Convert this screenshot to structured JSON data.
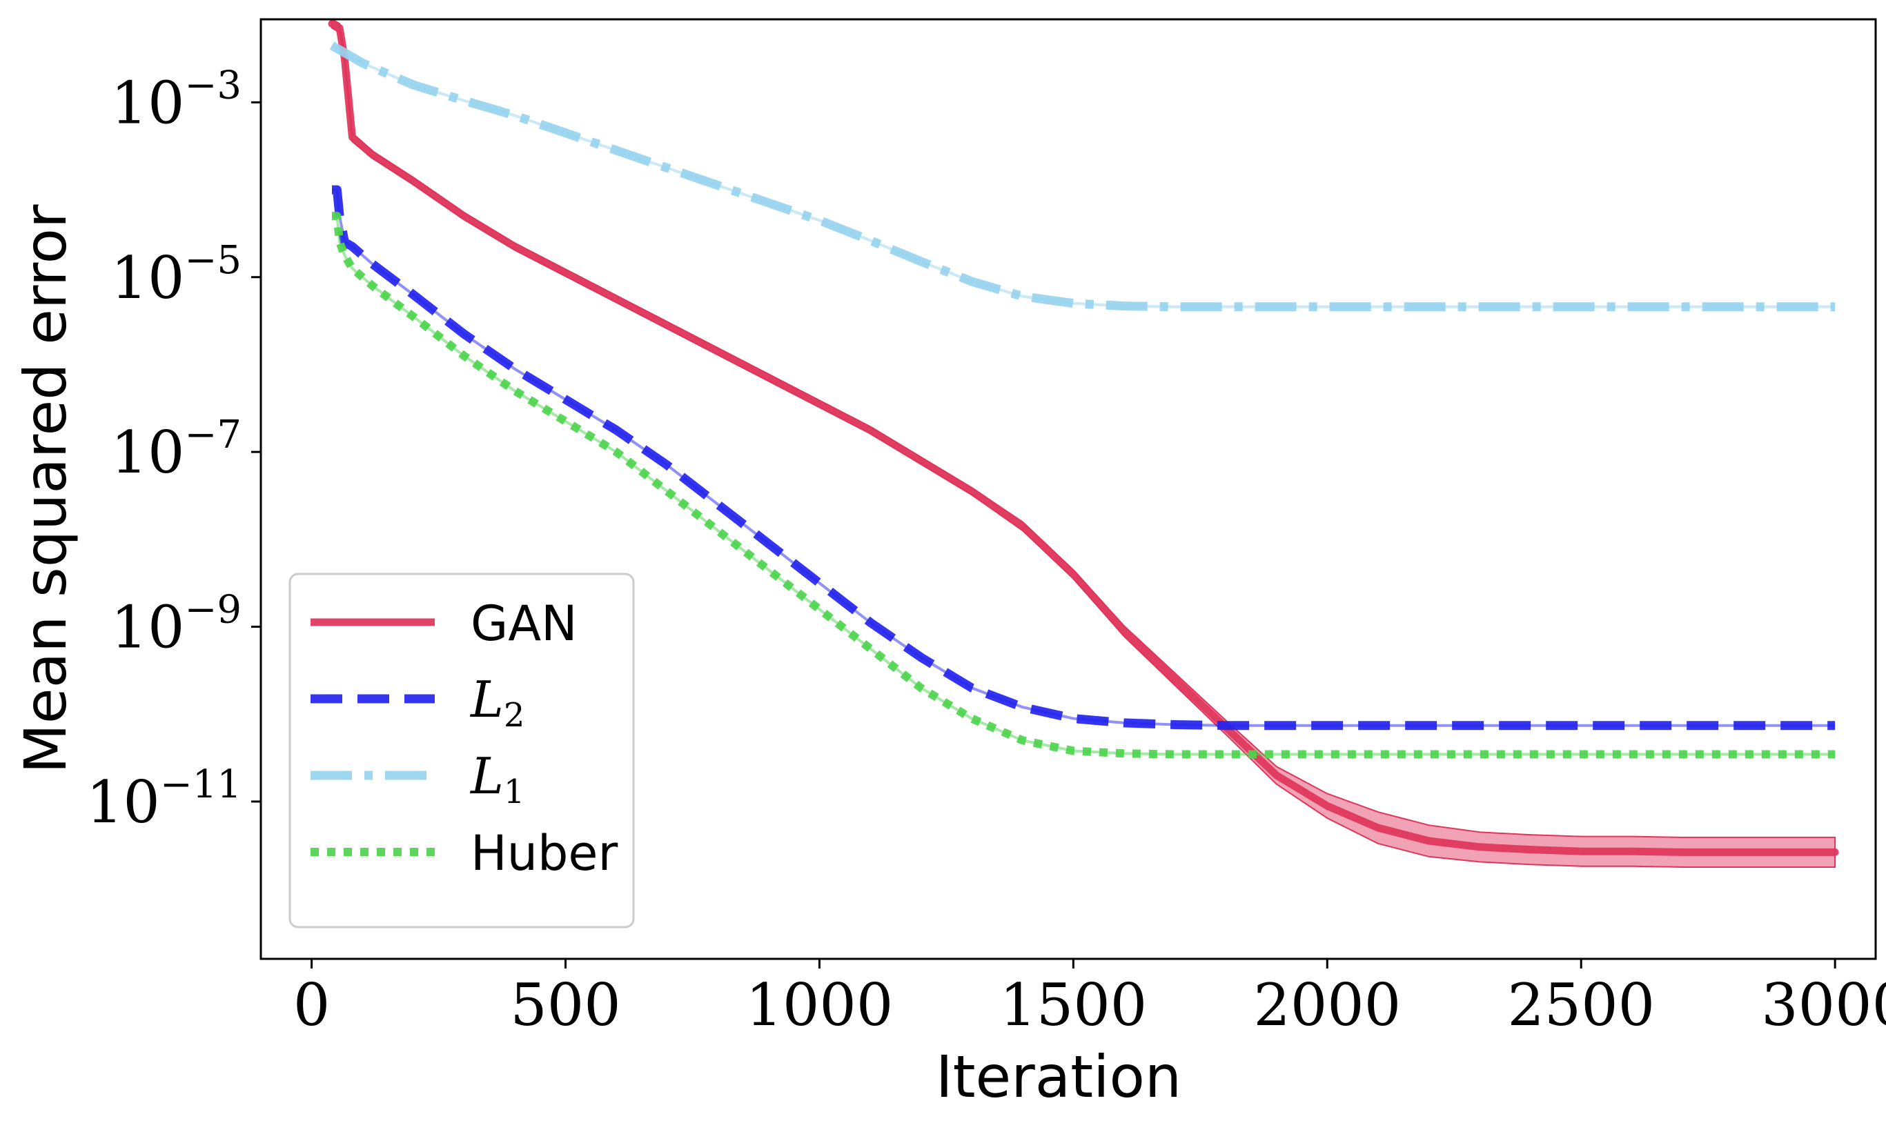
{
  "chart_data": {
    "type": "line",
    "title": "",
    "xlabel": "Iteration",
    "ylabel": "Mean squared error",
    "yscale": "log",
    "xlim": [
      -100,
      3080
    ],
    "ylim_log10": [
      -12.8,
      -2.05
    ],
    "x_ticks": [
      0,
      500,
      1000,
      1500,
      2000,
      2500,
      3000
    ],
    "x_tick_labels": [
      "0",
      "500",
      "1000",
      "1500",
      "2000",
      "2500",
      "3000"
    ],
    "y_ticks_log10": [
      -3,
      -5,
      -7,
      -9,
      -11
    ],
    "y_tick_labels": [
      {
        "base": "10",
        "exp": "−3"
      },
      {
        "base": "10",
        "exp": "−5"
      },
      {
        "base": "10",
        "exp": "−7"
      },
      {
        "base": "10",
        "exp": "−9"
      },
      {
        "base": "10",
        "exp": "−11"
      }
    ],
    "legend_position": "lower-left",
    "series": [
      {
        "name": "GAN",
        "label_base": "GAN",
        "label_sub": "",
        "math": false,
        "color": "#e0345a",
        "style": "solid",
        "band": true,
        "x": [
          40,
          55,
          65,
          80,
          120,
          200,
          300,
          400,
          500,
          600,
          700,
          800,
          900,
          1000,
          1100,
          1200,
          1300,
          1400,
          1500,
          1600,
          1700,
          1800,
          1900,
          2000,
          2100,
          2200,
          2300,
          2400,
          2500,
          2600,
          2700,
          2800,
          2900,
          3000
        ],
        "log10": [
          -2.1,
          -2.15,
          -2.5,
          -3.4,
          -3.6,
          -3.9,
          -4.3,
          -4.65,
          -4.95,
          -5.25,
          -5.55,
          -5.85,
          -6.15,
          -6.45,
          -6.75,
          -7.1,
          -7.45,
          -7.85,
          -8.4,
          -9.05,
          -9.6,
          -10.15,
          -10.7,
          -11.05,
          -11.3,
          -11.45,
          -11.52,
          -11.55,
          -11.57,
          -11.57,
          -11.58,
          -11.58,
          -11.58,
          -11.58
        ],
        "band_log10": [
          0.05,
          0.05,
          0.05,
          0.05,
          0.04,
          0.04,
          0.04,
          0.04,
          0.04,
          0.04,
          0.04,
          0.04,
          0.04,
          0.04,
          0.04,
          0.04,
          0.04,
          0.05,
          0.05,
          0.06,
          0.07,
          0.08,
          0.1,
          0.14,
          0.18,
          0.18,
          0.17,
          0.17,
          0.17,
          0.17,
          0.17,
          0.17,
          0.17,
          0.17
        ]
      },
      {
        "name": "L2",
        "label_base": "L",
        "label_sub": "2",
        "math": true,
        "color": "#2424ee",
        "style": "dashed",
        "band": false,
        "x": [
          40,
          50,
          55,
          65,
          80,
          120,
          200,
          300,
          400,
          500,
          600,
          700,
          800,
          900,
          1000,
          1100,
          1200,
          1300,
          1400,
          1500,
          1600,
          1700,
          1800,
          1900,
          2000,
          2100,
          2200,
          2300,
          2400,
          2500,
          2600,
          2700,
          2800,
          2900,
          3000
        ],
        "log10": [
          -4.0,
          -4.0,
          -4.3,
          -4.6,
          -4.65,
          -4.85,
          -5.2,
          -5.65,
          -6.05,
          -6.4,
          -6.75,
          -7.15,
          -7.6,
          -8.05,
          -8.5,
          -8.95,
          -9.35,
          -9.7,
          -9.92,
          -10.05,
          -10.1,
          -10.12,
          -10.13,
          -10.13,
          -10.13,
          -10.13,
          -10.13,
          -10.13,
          -10.13,
          -10.13,
          -10.13,
          -10.13,
          -10.13,
          -10.13,
          -10.13
        ]
      },
      {
        "name": "L1",
        "label_base": "L",
        "label_sub": "1",
        "math": true,
        "color": "#97d2ef",
        "style": "dashdot",
        "band": false,
        "x": [
          40,
          100,
          200,
          300,
          400,
          500,
          600,
          700,
          800,
          900,
          1000,
          1100,
          1200,
          1300,
          1400,
          1500,
          1600,
          1700,
          1800,
          1900,
          2000,
          2100,
          2200,
          2300,
          2400,
          2500,
          2600,
          2700,
          2800,
          2900,
          3000
        ],
        "log10": [
          -2.35,
          -2.55,
          -2.8,
          -2.98,
          -3.15,
          -3.35,
          -3.55,
          -3.75,
          -3.95,
          -4.15,
          -4.35,
          -4.58,
          -4.82,
          -5.05,
          -5.22,
          -5.3,
          -5.33,
          -5.34,
          -5.34,
          -5.34,
          -5.34,
          -5.34,
          -5.34,
          -5.34,
          -5.34,
          -5.34,
          -5.34,
          -5.34,
          -5.34,
          -5.34,
          -5.34
        ]
      },
      {
        "name": "Huber",
        "label_base": "Huber",
        "label_sub": "",
        "math": false,
        "color": "#4dd44d",
        "style": "dotted",
        "band": false,
        "x": [
          40,
          50,
          55,
          65,
          80,
          120,
          200,
          300,
          400,
          500,
          600,
          700,
          800,
          900,
          1000,
          1100,
          1200,
          1300,
          1400,
          1500,
          1600,
          1700,
          1800,
          1900,
          2000,
          2100,
          2200,
          2300,
          2400,
          2500,
          2600,
          2700,
          2800,
          2900,
          3000
        ],
        "log10": [
          -4.3,
          -4.3,
          -4.6,
          -4.75,
          -4.9,
          -5.1,
          -5.45,
          -5.9,
          -6.3,
          -6.65,
          -7.0,
          -7.45,
          -7.9,
          -8.35,
          -8.8,
          -9.25,
          -9.7,
          -10.05,
          -10.3,
          -10.42,
          -10.45,
          -10.46,
          -10.46,
          -10.46,
          -10.46,
          -10.46,
          -10.46,
          -10.46,
          -10.46,
          -10.46,
          -10.46,
          -10.46,
          -10.46,
          -10.46,
          -10.46
        ]
      }
    ]
  }
}
